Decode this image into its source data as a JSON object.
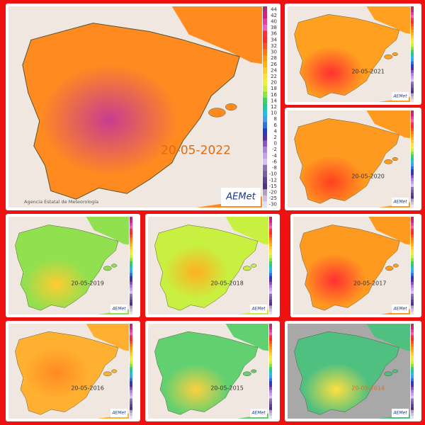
{
  "main": {
    "date": "20-05-2022",
    "agency": "Agencia Estatal de Meteorología",
    "logo": "AEMet"
  },
  "legend": {
    "ticks": [
      44,
      42,
      40,
      38,
      36,
      34,
      32,
      30,
      28,
      26,
      24,
      22,
      20,
      18,
      16,
      14,
      12,
      10,
      8,
      6,
      4,
      2,
      0,
      -2,
      -4,
      -6,
      -8,
      -10,
      -12,
      -15,
      -20,
      -25,
      -30
    ]
  },
  "panels": [
    {
      "date": "20-05-2021"
    },
    {
      "date": "20-05-2020"
    },
    {
      "date": "20-05-2019"
    },
    {
      "date": "20-05-2018"
    },
    {
      "date": "20-05-2017"
    },
    {
      "date": "20-05-2016"
    },
    {
      "date": "20-05-2015"
    },
    {
      "date": "20-05-2014"
    }
  ]
}
